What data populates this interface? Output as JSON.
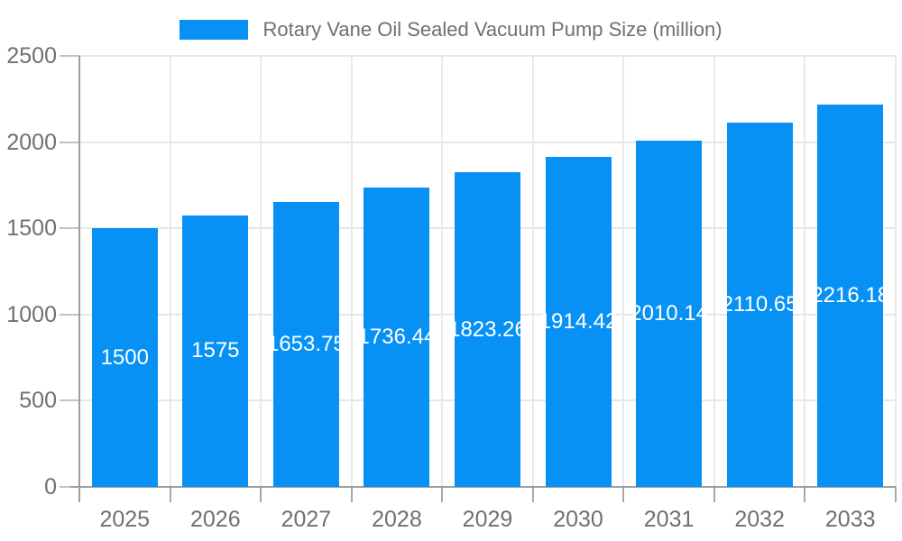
{
  "legend": {
    "label": "Rotary Vane Oil Sealed Vacuum Pump Size (million)"
  },
  "colors": {
    "bar": "#0891f5",
    "axis_text": "#707070",
    "value_label": "#ffffff",
    "gridline": "#e7e7e7",
    "axis_line": "#9e9e9e"
  },
  "chart_data": {
    "type": "bar",
    "title": "Rotary Vane Oil Sealed Vacuum Pump Size (million)",
    "categories": [
      "2025",
      "2026",
      "2027",
      "2028",
      "2029",
      "2030",
      "2031",
      "2032",
      "2033"
    ],
    "values": [
      1500,
      1575,
      1653.75,
      1736.44,
      1823.26,
      1914.42,
      2010.14,
      2110.65,
      2216.18
    ],
    "value_labels": [
      "1500",
      "1575",
      "1653.75",
      "1736.44",
      "1823.26",
      "1914.42",
      "2010.14",
      "2110.65",
      "2216.18"
    ],
    "xlabel": "",
    "ylabel": "",
    "ylim": [
      0,
      2500
    ],
    "yticks": [
      0,
      500,
      1000,
      1500,
      2000,
      2500
    ],
    "grid": true,
    "legend_position": "top",
    "value_label_position": "middle-of-bar"
  }
}
